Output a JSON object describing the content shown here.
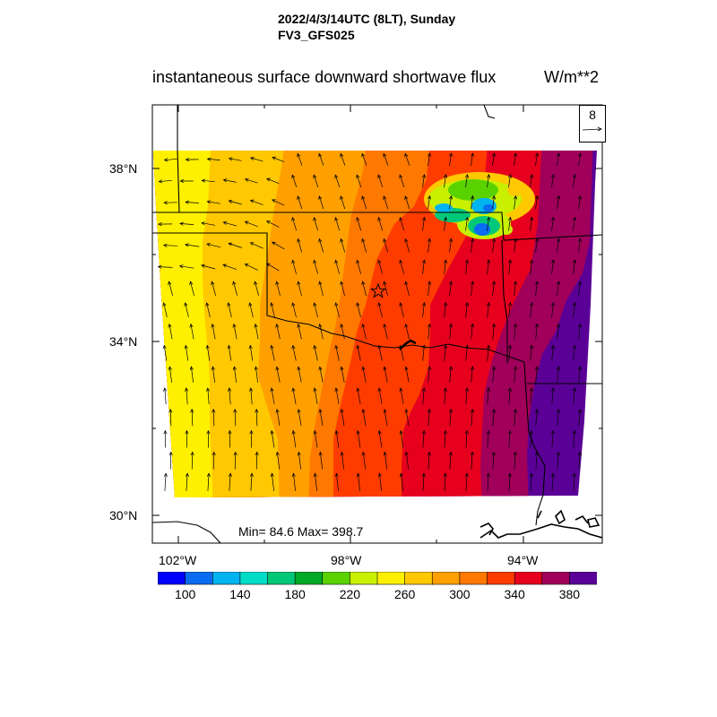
{
  "header": {
    "datetime": "2022/4/3/14UTC (8LT), Sunday",
    "model": "FV3_GFS025"
  },
  "title": "instantaneous surface downward shortwave flux",
  "units": "W/m**2",
  "axes": {
    "lat_ticks": [
      "38°N",
      "34°N",
      "30°N"
    ],
    "lon_ticks": [
      "102°W",
      "98°W",
      "94°W"
    ]
  },
  "stats": "Min= 84.6 Max= 398.7",
  "reference_vector": {
    "value": "8"
  },
  "colorbar": {
    "labels": [
      "100",
      "140",
      "180",
      "220",
      "260",
      "300",
      "340",
      "380"
    ],
    "colors": [
      "#0000ff",
      "#0a6cf0",
      "#00b4f0",
      "#00dcc8",
      "#00c878",
      "#00aa28",
      "#5ad200",
      "#c8f000",
      "#fff000",
      "#ffc800",
      "#ffa000",
      "#ff7800",
      "#ff3c00",
      "#e6001e",
      "#a0005a",
      "#5a0096"
    ]
  },
  "map": {
    "field_colors": {
      "band_yellow": "#fff000",
      "band_gold": "#ffc800",
      "band_orange": "#ffa000",
      "band_dark_orange": "#ff7800",
      "band_red_orange": "#ff3c00",
      "band_red": "#e6001e",
      "band_crimson": "#a0005a",
      "band_purple": "#5a0096"
    },
    "location_marker": "star"
  }
}
